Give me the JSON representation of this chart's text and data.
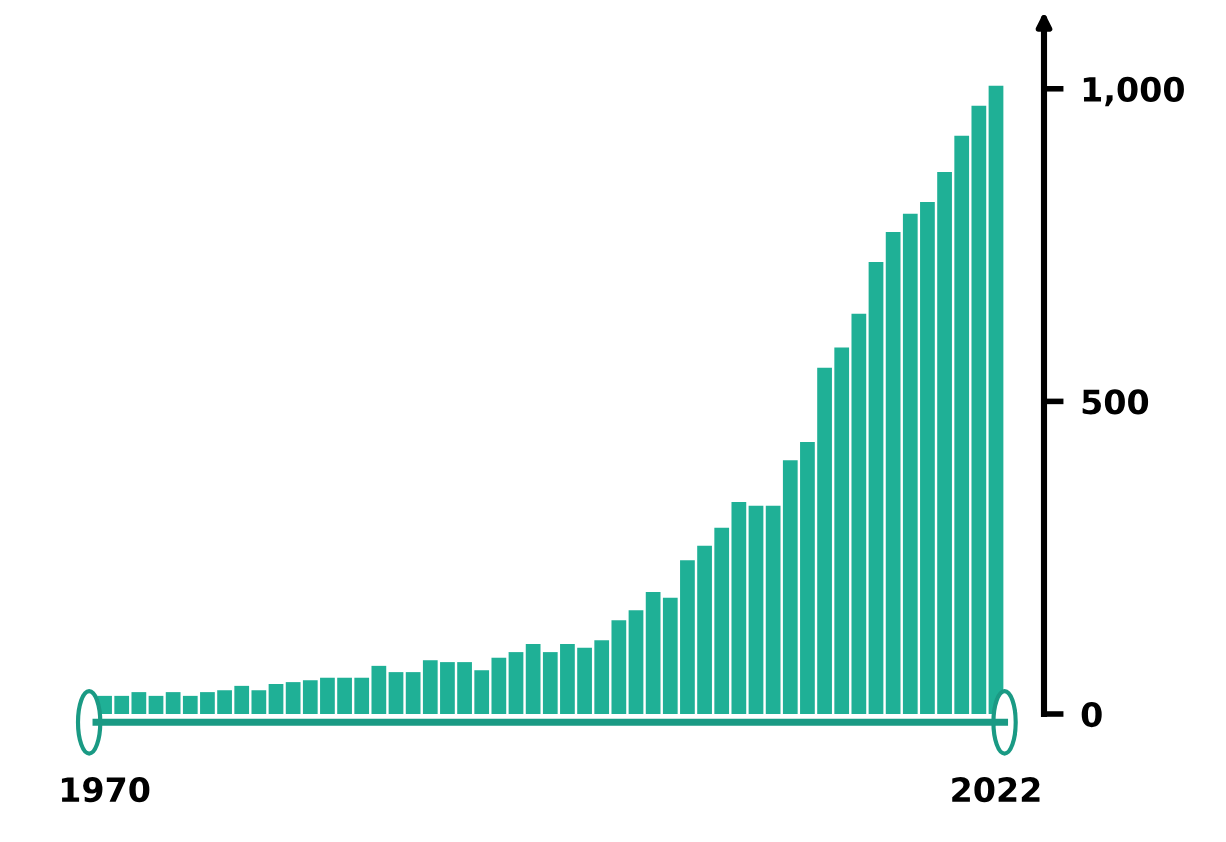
{
  "chart_data": {
    "type": "bar",
    "categories": [
      "1970",
      null,
      null,
      null,
      null,
      null,
      null,
      null,
      null,
      null,
      null,
      null,
      null,
      null,
      null,
      null,
      null,
      null,
      null,
      null,
      null,
      null,
      null,
      null,
      null,
      null,
      null,
      null,
      null,
      null,
      null,
      null,
      null,
      null,
      null,
      null,
      null,
      null,
      null,
      null,
      null,
      null,
      null,
      null,
      null,
      null,
      null,
      null,
      null,
      null,
      null,
      null,
      "2022"
    ],
    "values": [
      29,
      29,
      35,
      29,
      35,
      29,
      35,
      38,
      45,
      38,
      48,
      51,
      54,
      58,
      58,
      58,
      77,
      67,
      67,
      86,
      83,
      83,
      70,
      90,
      99,
      112,
      99,
      112,
      106,
      118,
      150,
      166,
      195,
      186,
      246,
      269,
      298,
      339,
      333,
      333,
      406,
      435,
      554,
      586,
      640,
      723,
      771,
      800,
      819,
      867,
      925,
      973,
      1005
    ],
    "color": "#1fb096",
    "ylim": [
      0,
      1110
    ],
    "yticks": [
      0,
      500,
      {
        "value": 1000,
        "label": "1,000"
      }
    ],
    "grid": false,
    "legend": false
  }
}
